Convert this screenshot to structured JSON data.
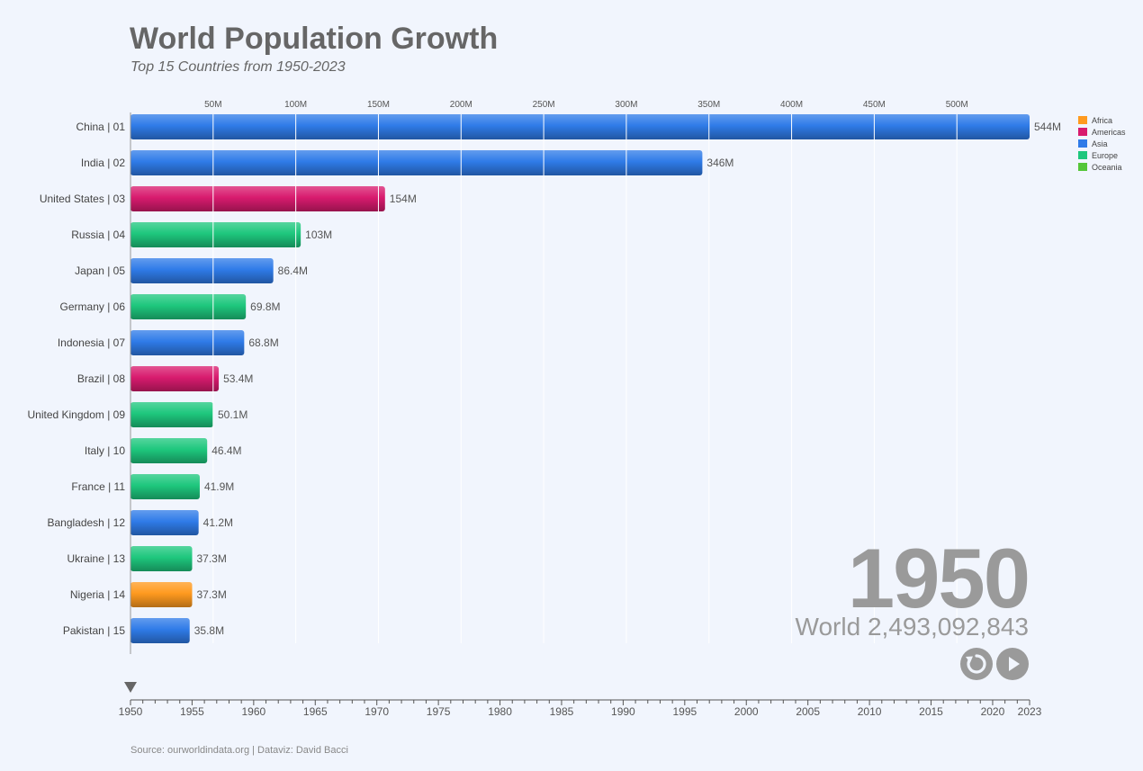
{
  "header": {
    "title": "World Population Growth",
    "subtitle": "Top 15 Countries from 1950-2023"
  },
  "legend": [
    {
      "label": "Africa",
      "color": "#ff9a1f"
    },
    {
      "label": "Americas",
      "color": "#d81b6e"
    },
    {
      "label": "Asia",
      "color": "#2f7be8"
    },
    {
      "label": "Europe",
      "color": "#1ec77d"
    },
    {
      "label": "Oceania",
      "color": "#55c639"
    }
  ],
  "year_display": {
    "year": "1950",
    "world_total": "World 2,493,092,843"
  },
  "controls": {
    "replay_icon": "replay-icon",
    "play_icon": "play-icon"
  },
  "source": "Source: ourworldindata.org | Dataviz: David Bacci",
  "chart_data": {
    "type": "bar",
    "orientation": "horizontal",
    "year": 1950,
    "categories": [
      "China | 01",
      "India | 02",
      "United States | 03",
      "Russia | 04",
      "Japan | 05",
      "Germany | 06",
      "Indonesia | 07",
      "Brazil | 08",
      "United Kingdom | 09",
      "Italy | 10",
      "France | 11",
      "Bangladesh | 12",
      "Ukraine | 13",
      "Nigeria | 14",
      "Pakistan | 15"
    ],
    "values": [
      544,
      346,
      154,
      103,
      86.4,
      69.8,
      68.8,
      53.4,
      50.1,
      46.4,
      41.9,
      41.2,
      37.3,
      37.3,
      35.8
    ],
    "value_labels": [
      "544M",
      "346M",
      "154M",
      "103M",
      "86.4M",
      "69.8M",
      "68.8M",
      "53.4M",
      "50.1M",
      "46.4M",
      "41.9M",
      "41.2M",
      "37.3M",
      "37.3M",
      "35.8M"
    ],
    "regions": [
      "Asia",
      "Asia",
      "Americas",
      "Europe",
      "Asia",
      "Europe",
      "Asia",
      "Americas",
      "Europe",
      "Europe",
      "Europe",
      "Asia",
      "Europe",
      "Africa",
      "Asia"
    ],
    "xlim": [
      0,
      544
    ],
    "x_ticks": [
      50,
      100,
      150,
      200,
      250,
      300,
      350,
      400,
      450,
      500
    ],
    "x_tick_labels": [
      "50M",
      "100M",
      "150M",
      "200M",
      "250M",
      "300M",
      "350M",
      "400M",
      "450M",
      "500M"
    ],
    "grid": true,
    "timeline": {
      "start": 1950,
      "end": 2023,
      "current": 1950,
      "labels": [
        "1950",
        "1955",
        "1960",
        "1965",
        "1970",
        "1975",
        "1980",
        "1985",
        "1990",
        "1995",
        "2000",
        "2005",
        "2010",
        "2015",
        "2020",
        "2023"
      ]
    }
  }
}
